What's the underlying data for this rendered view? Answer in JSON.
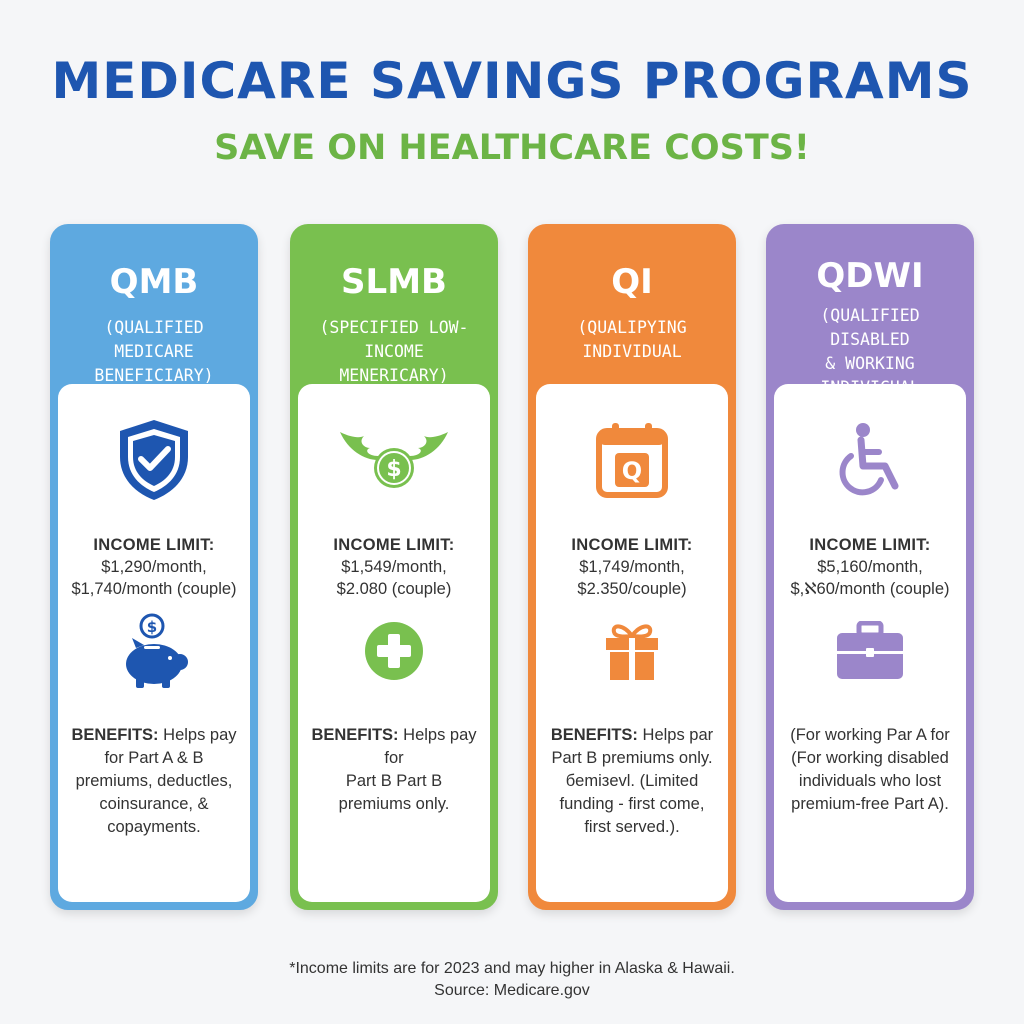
{
  "header": {
    "title": "MEDICARE SAVINGS PROGRAMS",
    "subtitle": "SAVE ON HEALTHCARE COSTS!"
  },
  "colors": {
    "title": "#1e56b0",
    "subtitle": "#6cb446",
    "qmb": "#5ea9e0",
    "slmb": "#79c04f",
    "qi": "#f0893c",
    "qdwi": "#9b86ca"
  },
  "cards": [
    {
      "abbr": "QMB",
      "full_line1": "(QUALIFIED MEDICARE",
      "full_line2": "BENEFICIARY)",
      "full_line3": "",
      "top_icon": "shield-check-icon",
      "income_label": "INCOME LIMIT:",
      "income_line1": "$1,290/month,",
      "income_line2": "$1,740/month (couple)",
      "mid_icon": "piggy-bank-icon",
      "benefits_label": "BENEFITS:",
      "benefits_line1": " Helps pay",
      "benefits_line2": "for Part A & B",
      "benefits_line3": "premiums, deductles,",
      "benefits_line4": "coinsurance, &",
      "benefits_line5": "copayments."
    },
    {
      "abbr": "SLMB",
      "full_line1": "(SPECIFIED LOW-INCOME",
      "full_line2": "MENERICARY)",
      "full_line3": "",
      "top_icon": "winged-coin-icon",
      "income_label": "INCOME LIMIT:",
      "income_line1": "$1,549/month,",
      "income_line2": "$2.080 (couple)",
      "mid_icon": "plus-circle-icon",
      "benefits_label": "BENEFITS:",
      "benefits_line1": " Helps pay for",
      "benefits_line2": "Part B Part B",
      "benefits_line3": "premiums only.",
      "benefits_line4": "",
      "benefits_line5": ""
    },
    {
      "abbr": "QI",
      "full_line1": "(QUALIPYING",
      "full_line2": "INDIVIDUAL",
      "full_line3": "",
      "top_icon": "calendar-q-icon",
      "income_label": "INCOME LIMIT:",
      "income_line1": "$1,749/month,",
      "income_line2": "$2.350/couple)",
      "mid_icon": "gift-icon",
      "benefits_label": "BENEFITS:",
      "benefits_line1": " Helps par",
      "benefits_line2": "Part B premiums only.",
      "benefits_line3": "бemiзevl. (Limited",
      "benefits_line4": "funding - first come,",
      "benefits_line5": "first served.)."
    },
    {
      "abbr": "QDWI",
      "full_line1": "(QUALIFIED DISABLED",
      "full_line2": "& WORKING",
      "full_line3": "INDIVICUAL",
      "top_icon": "wheelchair-icon",
      "income_label": "INCOME LIMIT:",
      "income_line1": "$5,160/month,",
      "income_line2": "$,ℵ60/month (couple)",
      "mid_icon": "briefcase-icon",
      "benefits_label": "",
      "benefits_line1": "(For working Par A for",
      "benefits_line2": "(For working disabled",
      "benefits_line3": "individuals who lost",
      "benefits_line4": "premium-free Part A).",
      "benefits_line5": ""
    }
  ],
  "footer": {
    "note": "*Income limits are for 2023 and may higher in Alaska & Hawaii.",
    "source": "Source: Medicare.gov"
  }
}
